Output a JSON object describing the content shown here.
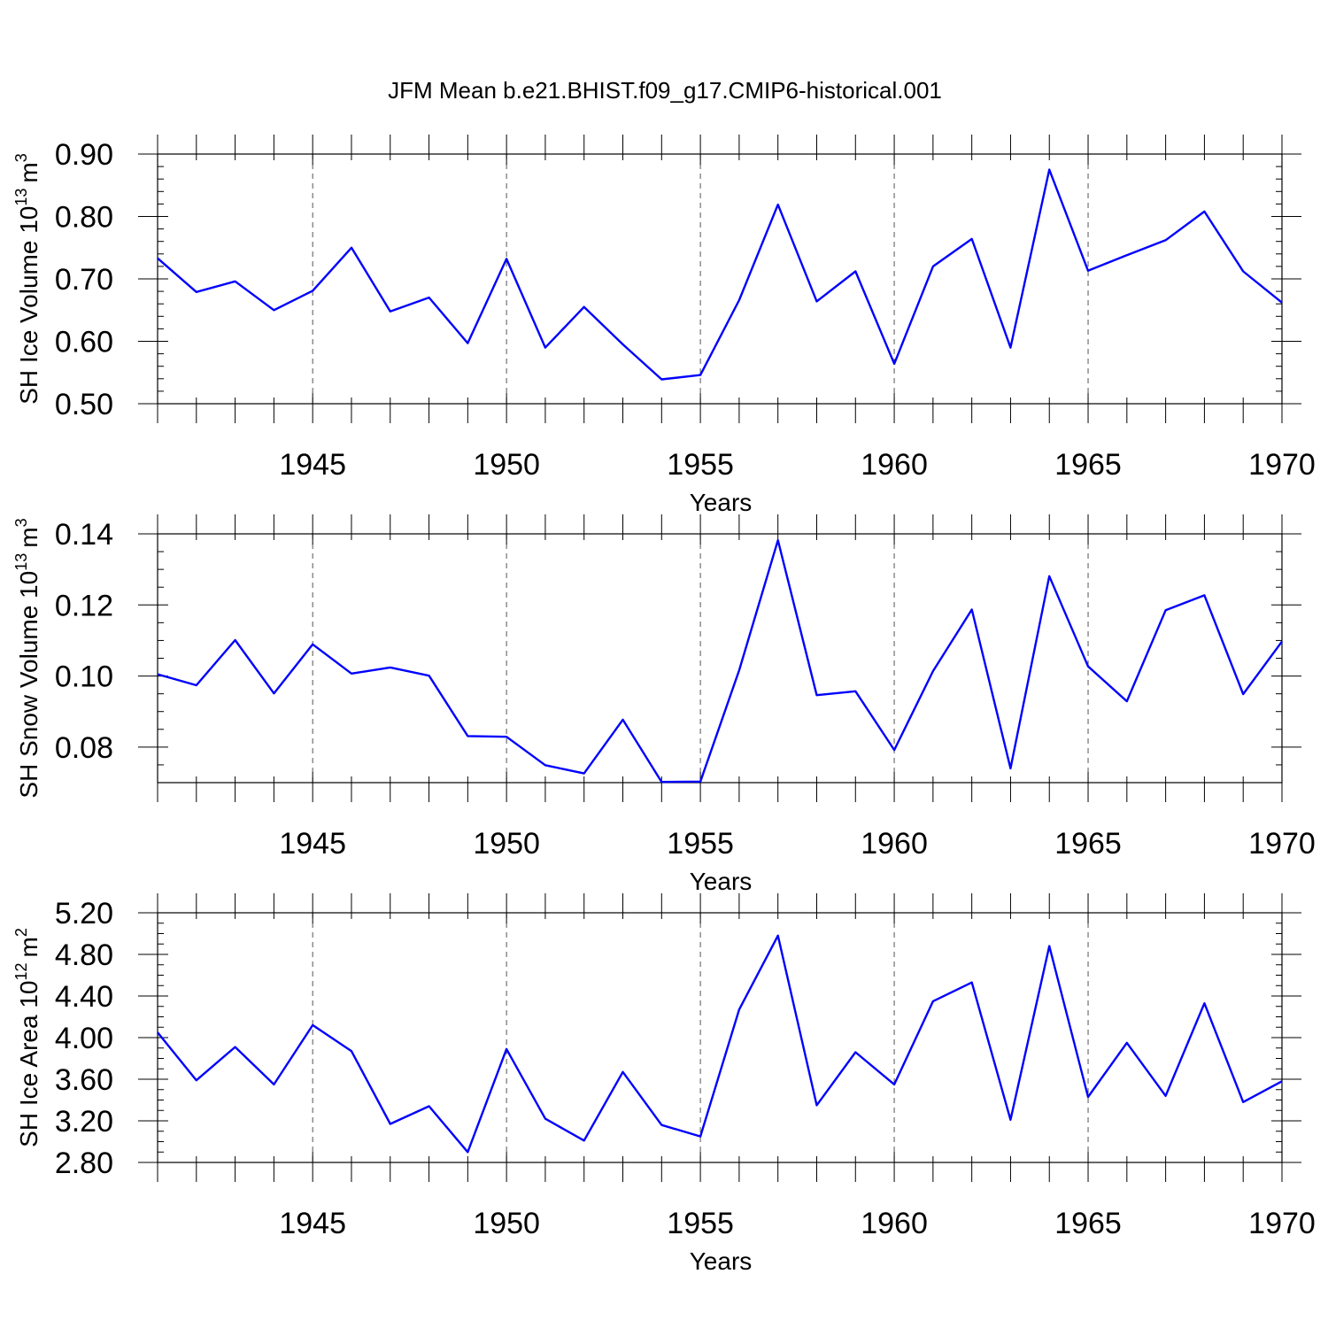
{
  "figure_title": "JFM Mean b.e21.BHIST.f09_g17.CMIP6-historical.001",
  "colors": {
    "line": "#0000ff",
    "axis": "#000000",
    "grid": "#555555"
  },
  "chart_data": [
    {
      "type": "line",
      "title": "JFM Mean b.e21.BHIST.f09_g17.CMIP6-historical.001",
      "ylabel": "SH Ice Volume",
      "yunit_base": "10",
      "yunit_exp": "13",
      "yunit_m": "m",
      "yunit_m_exp": "3",
      "xlabel": "Years",
      "xlim": [
        1941,
        1970
      ],
      "ylim": [
        0.5,
        0.9
      ],
      "yticks": [
        0.5,
        0.6,
        0.7,
        0.8,
        0.9
      ],
      "ytick_labels": [
        "0.50",
        "0.60",
        "0.70",
        "0.80",
        "0.90"
      ],
      "yminor_step": 0.02,
      "xticks": [
        1945,
        1950,
        1955,
        1960,
        1965,
        1970
      ],
      "xtick_labels": [
        "1945",
        "1950",
        "1955",
        "1960",
        "1965",
        "1970"
      ],
      "grid": "vertical dashed at major x ticks",
      "x": [
        1941,
        1942,
        1943,
        1944,
        1945,
        1946,
        1947,
        1948,
        1949,
        1950,
        1951,
        1952,
        1953,
        1954,
        1955,
        1956,
        1957,
        1958,
        1959,
        1960,
        1961,
        1962,
        1963,
        1964,
        1965,
        1966,
        1967,
        1968,
        1969,
        1970
      ],
      "values": [
        0.733,
        0.679,
        0.696,
        0.65,
        0.681,
        0.75,
        0.648,
        0.67,
        0.597,
        0.732,
        0.59,
        0.655,
        0.595,
        0.539,
        0.546,
        0.666,
        0.819,
        0.664,
        0.712,
        0.564,
        0.72,
        0.764,
        0.59,
        0.875,
        0.713,
        0.738,
        0.762,
        0.808,
        0.712,
        0.662
      ]
    },
    {
      "type": "line",
      "ylabel": "SH Snow Volume",
      "yunit_base": "10",
      "yunit_exp": "13",
      "yunit_m": "m",
      "yunit_m_exp": "3",
      "xlabel": "Years",
      "xlim": [
        1941,
        1970
      ],
      "ylim": [
        0.07,
        0.14
      ],
      "yticks": [
        0.08,
        0.1,
        0.12,
        0.14
      ],
      "ytick_labels": [
        "0.08",
        "0.10",
        "0.12",
        "0.14"
      ],
      "yminor_step": 0.005,
      "xticks": [
        1945,
        1950,
        1955,
        1960,
        1965,
        1970
      ],
      "xtick_labels": [
        "1945",
        "1950",
        "1955",
        "1960",
        "1965",
        "1970"
      ],
      "grid": "vertical dashed at major x ticks",
      "x": [
        1941,
        1942,
        1943,
        1944,
        1945,
        1946,
        1947,
        1948,
        1949,
        1950,
        1951,
        1952,
        1953,
        1954,
        1955,
        1956,
        1957,
        1958,
        1959,
        1960,
        1961,
        1962,
        1963,
        1964,
        1965,
        1966,
        1967,
        1968,
        1969,
        1970
      ],
      "values": [
        0.1005,
        0.0974,
        0.1101,
        0.0951,
        0.1089,
        0.1007,
        0.1024,
        0.1001,
        0.0831,
        0.0829,
        0.0749,
        0.0726,
        0.0877,
        0.0702,
        0.0703,
        0.1016,
        0.1382,
        0.0946,
        0.0957,
        0.0792,
        0.1014,
        0.1187,
        0.074,
        0.1281,
        0.1027,
        0.0929,
        0.1185,
        0.1227,
        0.0949,
        0.1097
      ]
    },
    {
      "type": "line",
      "ylabel": "SH Ice Area",
      "yunit_base": "10",
      "yunit_exp": "12",
      "yunit_m": "m",
      "yunit_m_exp": "2",
      "xlabel": "Years",
      "xlim": [
        1941,
        1970
      ],
      "ylim": [
        2.8,
        5.2
      ],
      "yticks": [
        2.8,
        3.2,
        3.6,
        4.0,
        4.4,
        4.8,
        5.2
      ],
      "ytick_labels": [
        "2.80",
        "3.20",
        "3.60",
        "4.00",
        "4.40",
        "4.80",
        "5.20"
      ],
      "yminor_step": 0.1,
      "xticks": [
        1945,
        1950,
        1955,
        1960,
        1965,
        1970
      ],
      "xtick_labels": [
        "1945",
        "1950",
        "1955",
        "1960",
        "1965",
        "1970"
      ],
      "grid": "vertical dashed at major x ticks",
      "x": [
        1941,
        1942,
        1943,
        1944,
        1945,
        1946,
        1947,
        1948,
        1949,
        1950,
        1951,
        1952,
        1953,
        1954,
        1955,
        1956,
        1957,
        1958,
        1959,
        1960,
        1961,
        1962,
        1963,
        1964,
        1965,
        1966,
        1967,
        1968,
        1969,
        1970
      ],
      "values": [
        4.05,
        3.59,
        3.91,
        3.55,
        4.12,
        3.87,
        3.17,
        3.34,
        2.9,
        3.89,
        3.22,
        3.01,
        3.67,
        3.16,
        3.05,
        4.27,
        4.98,
        3.35,
        3.86,
        3.55,
        4.35,
        4.53,
        3.21,
        4.88,
        3.43,
        3.95,
        3.44,
        4.33,
        3.38,
        3.58
      ]
    }
  ]
}
